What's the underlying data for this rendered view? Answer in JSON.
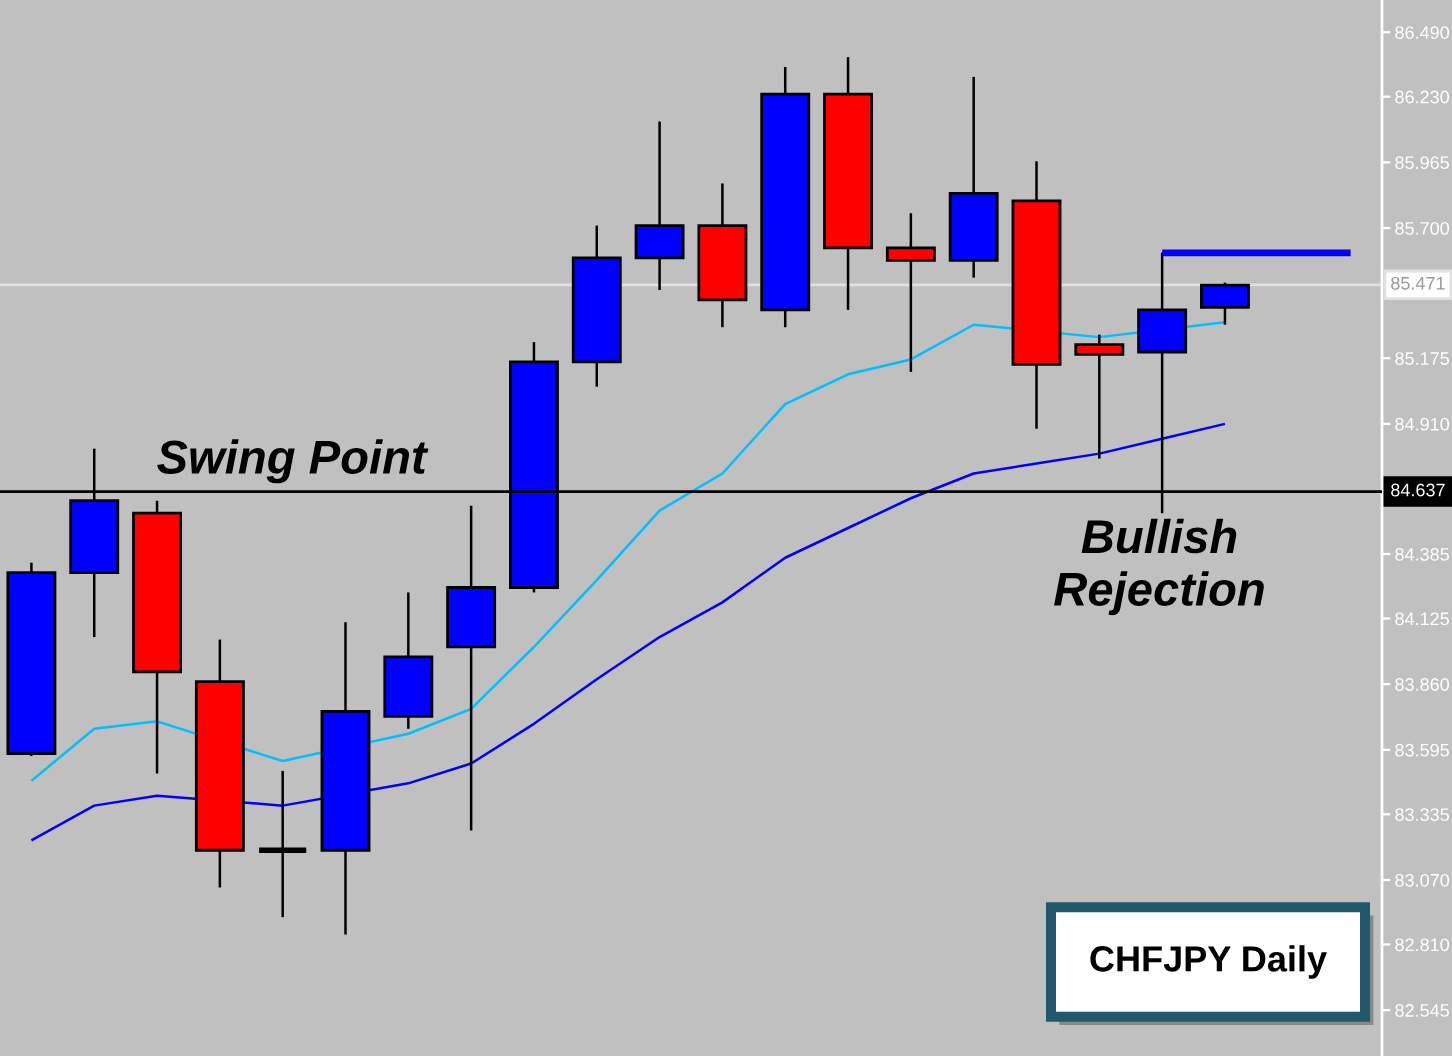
{
  "chart_data": {
    "type": "candlestick",
    "title": "CHFJPY Daily",
    "categories": [
      null,
      null,
      null,
      null,
      null,
      null,
      null,
      null,
      null,
      null,
      null,
      null,
      null,
      null,
      null,
      null,
      null,
      null,
      null,
      null,
      null,
      null
    ],
    "ohlc": [
      [
        83.58,
        84.35,
        83.57,
        84.31
      ],
      [
        84.31,
        84.81,
        84.05,
        84.6
      ],
      [
        84.55,
        84.6,
        83.5,
        83.91
      ],
      [
        83.87,
        84.04,
        83.04,
        83.19
      ],
      [
        83.19,
        83.51,
        82.92,
        83.19
      ],
      [
        83.19,
        84.11,
        82.85,
        83.75
      ],
      [
        83.73,
        84.23,
        83.68,
        83.97
      ],
      [
        84.01,
        84.58,
        83.27,
        84.25
      ],
      [
        84.25,
        85.24,
        84.23,
        85.16
      ],
      [
        85.16,
        85.71,
        85.06,
        85.58
      ],
      [
        85.58,
        86.13,
        85.45,
        85.71
      ],
      [
        85.71,
        85.88,
        85.3,
        85.41
      ],
      [
        85.37,
        86.35,
        85.3,
        86.24
      ],
      [
        86.24,
        86.39,
        85.37,
        85.62
      ],
      [
        85.62,
        85.76,
        85.12,
        85.57
      ],
      [
        85.57,
        86.31,
        85.5,
        85.84
      ],
      [
        85.81,
        85.97,
        84.89,
        85.15
      ],
      [
        85.23,
        85.27,
        84.77,
        85.19
      ],
      [
        85.2,
        85.6,
        84.55,
        85.37
      ],
      [
        85.38,
        85.48,
        85.31,
        85.47
      ],
      null,
      null
    ],
    "colors": [
      "#0000ff",
      "#0000ff",
      "#ff0000",
      "#ff0000",
      "#000000",
      "#0000ff",
      "#0000ff",
      "#0000ff",
      "#0000ff",
      "#0000ff",
      "#0000ff",
      "#ff0000",
      "#0000ff",
      "#ff0000",
      "#ff0000",
      "#0000ff",
      "#ff0000",
      "#ff0000",
      "#0000ff",
      "#0000ff",
      null,
      null
    ],
    "series": [
      {
        "type": "line",
        "color": "#00bfff",
        "values": [
          83.47,
          83.68,
          83.71,
          null,
          83.55,
          null,
          83.66,
          83.76,
          84.01,
          84.28,
          84.56,
          84.71,
          84.99,
          85.11,
          85.17,
          85.31,
          null,
          85.26,
          null,
          85.32,
          null,
          null
        ]
      },
      {
        "type": "line",
        "color": "#0000ff",
        "values": [
          83.23,
          83.37,
          83.41,
          null,
          83.37,
          null,
          83.46,
          83.54,
          83.7,
          83.88,
          84.05,
          84.19,
          84.37,
          84.49,
          84.61,
          84.71,
          84.75,
          84.79,
          84.85,
          84.91,
          null,
          null
        ]
      },
      {
        "type": "line",
        "color": "#0000ff",
        "values": [
          null,
          null,
          null,
          null,
          null,
          null,
          null,
          null,
          null,
          null,
          null,
          null,
          null,
          null,
          null,
          null,
          null,
          null,
          85.6,
          85.6,
          85.6,
          85.6
        ]
      }
    ],
    "ref_lines": [
      {
        "axis": "y",
        "value": 84.637,
        "label": "84.637",
        "color": "#000000"
      },
      {
        "axis": "y",
        "value": 85.471,
        "label": "85.471",
        "color": "#e0e0e0"
      }
    ],
    "annotations": [
      {
        "text": "Swing Point",
        "y": 84.637
      },
      {
        "text": "Bullish\nRejection",
        "y": 84.55
      }
    ],
    "ylim": [
      82.36,
      86.62
    ],
    "yticks": [
      {
        "value": 86.49,
        "label": "86.490"
      },
      {
        "value": 86.23,
        "label": "86.230"
      },
      85.965,
      {
        "value": 85.7,
        "label": "85.700"
      },
      85.175,
      {
        "value": 84.91,
        "label": "84.910"
      },
      84.385,
      84.125,
      {
        "value": 83.86,
        "label": "83.860"
      },
      83.595,
      83.335,
      {
        "value": 83.07,
        "label": "83.070"
      },
      {
        "value": 82.81,
        "label": "82.810"
      },
      82.545
    ],
    "tick_labels": "y"
  }
}
